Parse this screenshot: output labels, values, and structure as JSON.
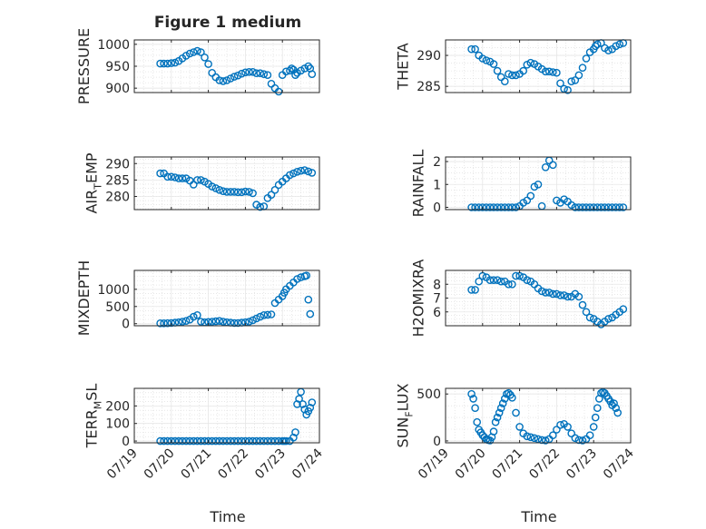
{
  "figure_title": "Figure 1 medium",
  "x_tick_labels": [
    "07/19",
    "07/20",
    "07/21",
    "07/22",
    "07/23",
    "07/24"
  ],
  "x_axis_label": "Time",
  "colors": {
    "marker": "#0072BD",
    "grid": "#e6e6e6",
    "axis": "#262626"
  },
  "chart_data": [
    {
      "type": "scatter",
      "id": "pressure",
      "ylabel_main": "PRESSURE",
      "ylabel_sub": "",
      "ylabel_tail": "",
      "xlim": [
        0,
        5
      ],
      "ylim": [
        890,
        1010
      ],
      "yticks": [
        900,
        950,
        1000
      ],
      "ytick_labels": [
        "900",
        "950",
        "1000"
      ],
      "x": [
        0.7,
        0.8,
        0.9,
        1.0,
        1.1,
        1.2,
        1.3,
        1.4,
        1.5,
        1.6,
        1.7,
        1.8,
        1.9,
        2.0,
        2.1,
        2.2,
        2.3,
        2.4,
        2.5,
        2.6,
        2.7,
        2.8,
        2.9,
        3.0,
        3.1,
        3.2,
        3.3,
        3.4,
        3.5,
        3.6,
        3.7,
        3.8,
        3.9,
        4.0,
        4.1,
        4.2,
        4.25,
        4.3,
        4.35,
        4.4,
        4.5,
        4.6,
        4.7,
        4.75,
        4.8
      ],
      "y": [
        956,
        956,
        956,
        957,
        958,
        962,
        968,
        974,
        979,
        982,
        985,
        982,
        970,
        955,
        935,
        925,
        918,
        916,
        918,
        922,
        926,
        929,
        933,
        936,
        937,
        937,
        934,
        934,
        932,
        930,
        910,
        900,
        892,
        930,
        938,
        940,
        945,
        942,
        930,
        935,
        940,
        945,
        950,
        945,
        932
      ]
    },
    {
      "type": "scatter",
      "id": "theta",
      "ylabel_main": "THETA",
      "ylabel_sub": "",
      "ylabel_tail": "",
      "xlim": [
        0,
        5
      ],
      "ylim": [
        284,
        292.5
      ],
      "yticks": [
        285,
        290
      ],
      "ytick_labels": [
        "285",
        "290"
      ],
      "x": [
        0.7,
        0.8,
        0.9,
        1.0,
        1.1,
        1.2,
        1.3,
        1.4,
        1.5,
        1.6,
        1.7,
        1.8,
        1.9,
        2.0,
        2.1,
        2.2,
        2.3,
        2.4,
        2.5,
        2.6,
        2.7,
        2.8,
        2.9,
        3.0,
        3.1,
        3.2,
        3.3,
        3.4,
        3.5,
        3.6,
        3.7,
        3.8,
        3.9,
        4.0,
        4.05,
        4.1,
        4.2,
        4.3,
        4.4,
        4.5,
        4.6,
        4.7,
        4.8
      ],
      "y": [
        291,
        291,
        290,
        289.5,
        289.2,
        289,
        288.6,
        287.5,
        286.5,
        285.8,
        287,
        286.8,
        286.8,
        287,
        287.5,
        288.5,
        288.8,
        288.6,
        288.2,
        287.8,
        287.4,
        287.4,
        287.3,
        287.2,
        285.5,
        284.6,
        284.4,
        285.8,
        286,
        286.8,
        288,
        289.5,
        290.5,
        291,
        291.5,
        291.8,
        292,
        291.2,
        290.8,
        291,
        291.5,
        291.8,
        292
      ]
    },
    {
      "type": "scatter",
      "id": "air_temp",
      "ylabel_main": "AIR",
      "ylabel_sub": "T",
      "ylabel_tail": "EMP",
      "xlim": [
        0,
        5
      ],
      "ylim": [
        276,
        292
      ],
      "yticks": [
        280,
        285,
        290
      ],
      "ytick_labels": [
        "280",
        "285",
        "290"
      ],
      "x": [
        0.7,
        0.8,
        0.9,
        1.0,
        1.1,
        1.2,
        1.3,
        1.4,
        1.5,
        1.6,
        1.7,
        1.8,
        1.9,
        2.0,
        2.1,
        2.2,
        2.3,
        2.4,
        2.5,
        2.6,
        2.7,
        2.8,
        2.9,
        3.0,
        3.1,
        3.2,
        3.3,
        3.4,
        3.5,
        3.6,
        3.7,
        3.8,
        3.9,
        4.0,
        4.1,
        4.2,
        4.3,
        4.4,
        4.5,
        4.6,
        4.7,
        4.8
      ],
      "y": [
        287,
        287,
        286,
        286,
        285.8,
        285.5,
        285.5,
        285.5,
        284.8,
        283.6,
        285,
        285,
        284.5,
        283.8,
        283,
        282.5,
        282,
        281.6,
        281.4,
        281.4,
        281.4,
        281.3,
        281.3,
        281.5,
        281.4,
        281,
        277.5,
        276.8,
        277,
        279.5,
        280.5,
        282,
        283.5,
        284.5,
        285.5,
        286.5,
        287,
        287.5,
        287.8,
        288,
        287.6,
        287.2
      ]
    },
    {
      "type": "scatter",
      "id": "rainfall",
      "ylabel_main": "RAINFALL",
      "ylabel_sub": "",
      "ylabel_tail": "",
      "xlim": [
        0,
        5
      ],
      "ylim": [
        -0.1,
        2.2
      ],
      "yticks": [
        0,
        1,
        2
      ],
      "ytick_labels": [
        "0",
        "1",
        "2"
      ],
      "x": [
        0.7,
        0.8,
        0.9,
        1.0,
        1.1,
        1.2,
        1.3,
        1.4,
        1.5,
        1.6,
        1.7,
        1.8,
        1.9,
        2.0,
        2.1,
        2.2,
        2.3,
        2.4,
        2.5,
        2.6,
        2.7,
        2.8,
        2.9,
        3.0,
        3.1,
        3.2,
        3.3,
        3.4,
        3.5,
        3.6,
        3.7,
        3.8,
        3.9,
        4.0,
        4.1,
        4.2,
        4.3,
        4.4,
        4.5,
        4.6,
        4.7,
        4.8
      ],
      "y": [
        0,
        0,
        0,
        0,
        0,
        0,
        0,
        0,
        0,
        0,
        0,
        0,
        0,
        0.05,
        0.2,
        0.3,
        0.5,
        0.9,
        1.0,
        0.05,
        1.75,
        2.05,
        1.85,
        0.3,
        0.2,
        0.35,
        0.25,
        0.1,
        0,
        0,
        0,
        0,
        0,
        0,
        0,
        0,
        0,
        0,
        0,
        0,
        0,
        0
      ]
    },
    {
      "type": "scatter",
      "id": "mixdepth",
      "ylabel_main": "MIXDEPTH",
      "ylabel_sub": "",
      "ylabel_tail": "",
      "xlim": [
        0,
        5
      ],
      "ylim": [
        -60,
        1550
      ],
      "yticks": [
        0,
        500,
        1000
      ],
      "ytick_labels": [
        "0",
        "500",
        "1000"
      ],
      "x": [
        0.7,
        0.8,
        0.9,
        1.0,
        1.1,
        1.2,
        1.3,
        1.4,
        1.5,
        1.6,
        1.7,
        1.8,
        1.9,
        2.0,
        2.1,
        2.2,
        2.3,
        2.4,
        2.5,
        2.6,
        2.7,
        2.8,
        2.9,
        3.0,
        3.1,
        3.2,
        3.3,
        3.4,
        3.5,
        3.6,
        3.7,
        3.8,
        3.9,
        4.0,
        4.05,
        4.1,
        4.2,
        4.3,
        4.4,
        4.5,
        4.6,
        4.65,
        4.7,
        4.75
      ],
      "y": [
        10,
        10,
        15,
        20,
        30,
        40,
        60,
        80,
        120,
        200,
        250,
        60,
        40,
        50,
        60,
        70,
        80,
        60,
        40,
        30,
        20,
        20,
        30,
        40,
        60,
        100,
        150,
        200,
        250,
        260,
        270,
        600,
        700,
        800,
        900,
        1000,
        1100,
        1200,
        1300,
        1350,
        1380,
        1400,
        700,
        280
      ]
    },
    {
      "type": "scatter",
      "id": "h2omixra",
      "ylabel_main": "H2OMIXRA",
      "ylabel_sub": "",
      "ylabel_tail": "",
      "xlim": [
        0,
        5
      ],
      "ylim": [
        5,
        9
      ],
      "yticks": [
        6,
        7,
        8
      ],
      "ytick_labels": [
        "6",
        "7",
        "8"
      ],
      "x": [
        0.7,
        0.8,
        0.9,
        1.0,
        1.1,
        1.2,
        1.3,
        1.4,
        1.5,
        1.6,
        1.7,
        1.8,
        1.9,
        2.0,
        2.1,
        2.2,
        2.3,
        2.4,
        2.5,
        2.6,
        2.7,
        2.8,
        2.9,
        3.0,
        3.1,
        3.2,
        3.3,
        3.4,
        3.5,
        3.6,
        3.7,
        3.8,
        3.9,
        4.0,
        4.1,
        4.2,
        4.3,
        4.4,
        4.5,
        4.6,
        4.7,
        4.8
      ],
      "y": [
        7.6,
        7.6,
        8.2,
        8.6,
        8.5,
        8.3,
        8.3,
        8.3,
        8.2,
        8.2,
        8.0,
        8.0,
        8.6,
        8.6,
        8.5,
        8.3,
        8.2,
        8.0,
        7.7,
        7.5,
        7.4,
        7.4,
        7.3,
        7.3,
        7.2,
        7.2,
        7.1,
        7.1,
        7.3,
        7.1,
        6.5,
        6.0,
        5.6,
        5.5,
        5.3,
        5.1,
        5.3,
        5.5,
        5.6,
        5.8,
        6.0,
        6.2
      ]
    },
    {
      "type": "scatter",
      "id": "terr_msl",
      "ylabel_main": "TERR",
      "ylabel_sub": "M",
      "ylabel_tail": "SL",
      "xlim": [
        0,
        5
      ],
      "ylim": [
        -10,
        300
      ],
      "yticks": [
        0,
        100,
        200
      ],
      "ytick_labels": [
        "0",
        "100",
        "200"
      ],
      "x": [
        0.7,
        0.8,
        0.9,
        1.0,
        1.1,
        1.2,
        1.3,
        1.4,
        1.5,
        1.6,
        1.7,
        1.8,
        1.9,
        2.0,
        2.1,
        2.2,
        2.3,
        2.4,
        2.5,
        2.6,
        2.7,
        2.8,
        2.9,
        3.0,
        3.1,
        3.2,
        3.3,
        3.4,
        3.5,
        3.6,
        3.7,
        3.8,
        3.9,
        4.0,
        4.05,
        4.1,
        4.2,
        4.3,
        4.35,
        4.4,
        4.45,
        4.5,
        4.55,
        4.6,
        4.65,
        4.7,
        4.75,
        4.8
      ],
      "y": [
        0,
        0,
        0,
        0,
        0,
        0,
        0,
        0,
        0,
        0,
        0,
        0,
        0,
        0,
        0,
        0,
        0,
        0,
        0,
        0,
        0,
        0,
        0,
        0,
        0,
        0,
        0,
        0,
        0,
        0,
        0,
        0,
        0,
        0,
        0,
        0,
        0,
        20,
        50,
        210,
        240,
        280,
        210,
        180,
        150,
        170,
        190,
        220
      ]
    },
    {
      "type": "scatter",
      "id": "sun_flux",
      "ylabel_main": "SUN",
      "ylabel_sub": "F",
      "ylabel_tail": "LUX",
      "xlim": [
        0,
        5
      ],
      "ylim": [
        -20,
        560
      ],
      "yticks": [
        0,
        500
      ],
      "ytick_labels": [
        "0",
        "500"
      ],
      "x": [
        0.7,
        0.75,
        0.8,
        0.85,
        0.9,
        0.95,
        1.0,
        1.05,
        1.1,
        1.15,
        1.2,
        1.25,
        1.3,
        1.35,
        1.4,
        1.45,
        1.5,
        1.55,
        1.6,
        1.65,
        1.7,
        1.75,
        1.8,
        1.9,
        2.0,
        2.1,
        2.2,
        2.3,
        2.4,
        2.5,
        2.6,
        2.7,
        2.8,
        2.9,
        3.0,
        3.1,
        3.2,
        3.3,
        3.4,
        3.5,
        3.6,
        3.7,
        3.8,
        3.9,
        4.0,
        4.05,
        4.1,
        4.15,
        4.2,
        4.25,
        4.3,
        4.35,
        4.4,
        4.45,
        4.5,
        4.55,
        4.6,
        4.65
      ],
      "y": [
        500,
        450,
        350,
        200,
        120,
        90,
        60,
        40,
        20,
        10,
        5,
        40,
        100,
        200,
        250,
        300,
        350,
        400,
        450,
        500,
        510,
        490,
        460,
        300,
        150,
        80,
        50,
        40,
        30,
        20,
        10,
        5,
        20,
        60,
        120,
        170,
        180,
        150,
        80,
        30,
        10,
        5,
        20,
        60,
        150,
        250,
        350,
        450,
        510,
        520,
        510,
        480,
        450,
        420,
        380,
        400,
        350,
        300
      ]
    }
  ]
}
